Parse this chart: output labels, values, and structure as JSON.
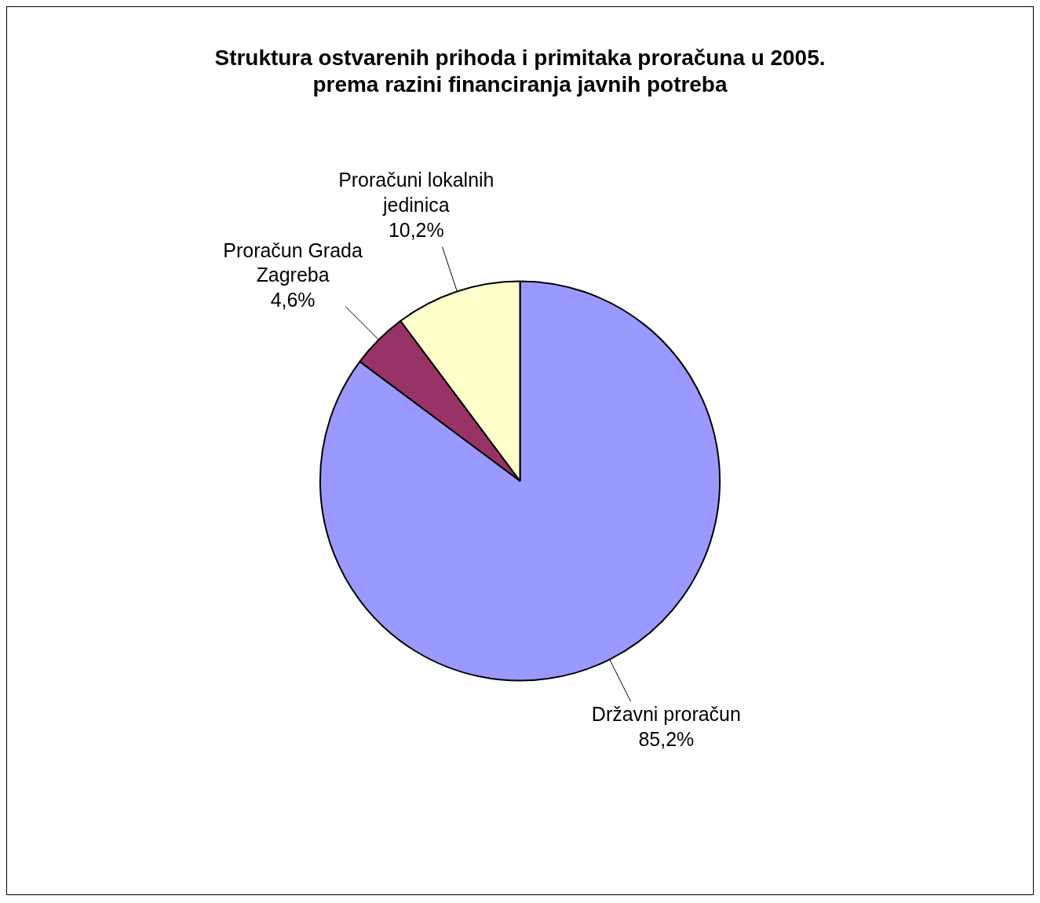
{
  "chart_data": {
    "type": "pie",
    "title": "Struktura ostvarenih prihoda i primitaka proračuna u 2005. prema razini financiranja javnih potreba",
    "categories": [
      "Državni proračun",
      "Proračun Grada Zagreba",
      "Proračuni lokalnih jedinica"
    ],
    "values": [
      85.2,
      4.6,
      10.2
    ],
    "colors": [
      "#9999ff",
      "#993366",
      "#ffffcc"
    ],
    "value_labels": [
      "85,2%",
      "4,6%",
      "10,2%"
    ]
  }
}
